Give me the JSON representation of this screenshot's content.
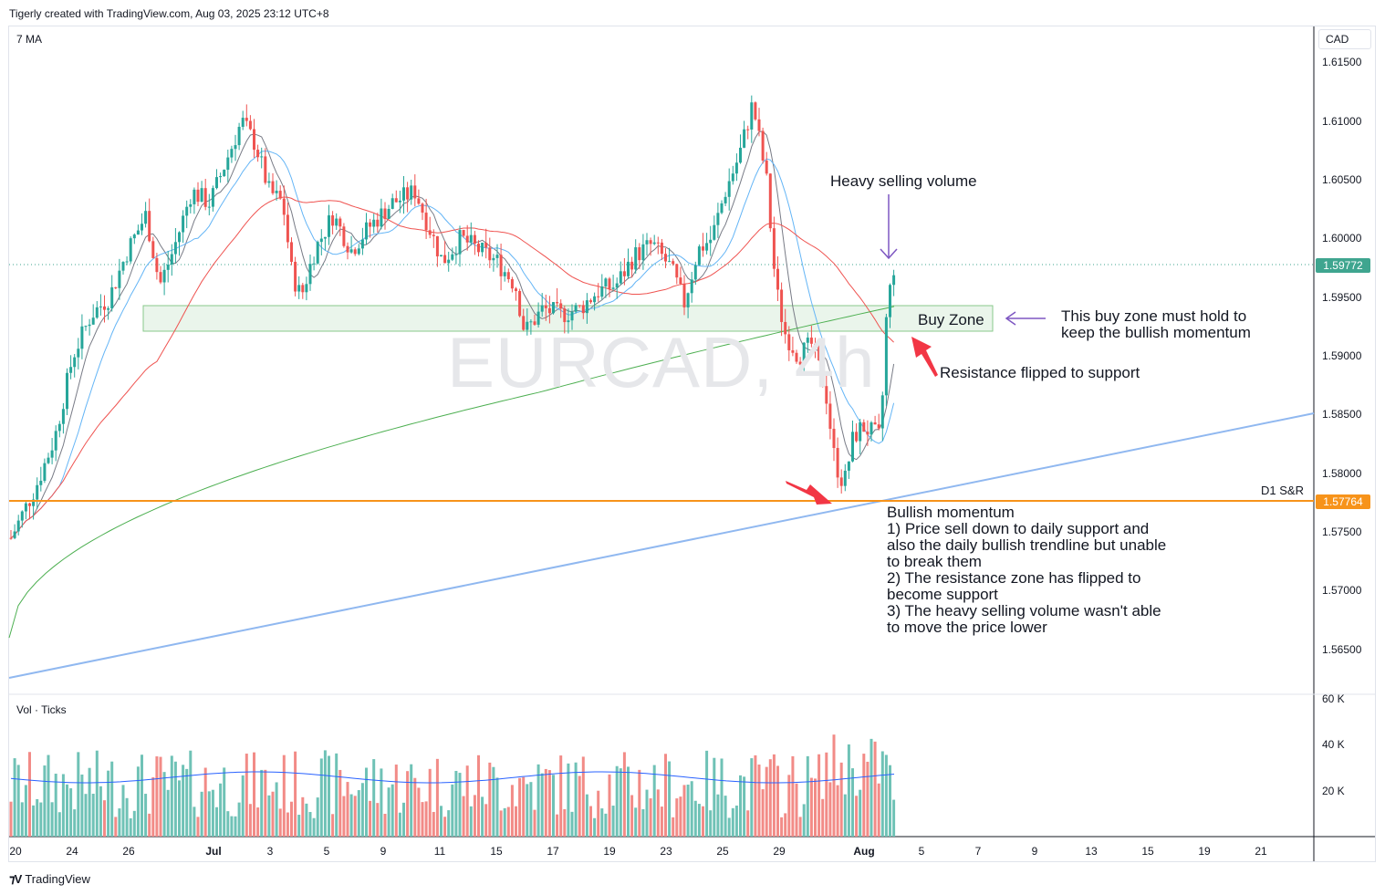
{
  "header": {
    "title": "Tigerly created with TradingView.com, Aug 03, 2025 23:12 UTC+8"
  },
  "indicator": {
    "ma_label": "7 MA",
    "volume_label": "Vol · Ticks"
  },
  "watermark": "EURCAD, 4h",
  "currency": "CAD",
  "price_axis": {
    "ticks": [
      "1.61500",
      "1.61000",
      "1.60500",
      "1.60000",
      "1.59500",
      "1.59000",
      "1.58500",
      "1.58000",
      "1.57500",
      "1.57000",
      "1.56500"
    ],
    "current_price": "1.59772",
    "sr_price": "1.57764",
    "current_color": "#3fa58f",
    "sr_color": "#f7931a"
  },
  "volume_axis": {
    "ticks": [
      "60 K",
      "40 K",
      "20 K"
    ]
  },
  "date_axis": {
    "ticks": [
      "20",
      "24",
      "26",
      "Jul",
      "3",
      "5",
      "9",
      "11",
      "15",
      "17",
      "19",
      "23",
      "25",
      "29",
      "Aug",
      "5",
      "7",
      "9",
      "13",
      "15",
      "19",
      "21"
    ]
  },
  "annotations": {
    "heavy_selling": "Heavy selling volume",
    "buy_zone": "Buy Zone",
    "buy_zone_note": "This buy zone must hold to\nkeep the bullish momentum",
    "resistance_flip": "Resistance flipped to support",
    "sr_label": "D1 S&R",
    "bullish_title": "Bullish momentum",
    "bullish_points": "1) Price sell down to daily support and\nalso the daily bullish trendline but unable\nto break them\n2) The resistance zone has flipped to\nbecome support\n3) The heavy selling volume wasn't able\nto move the price lower"
  },
  "footer": {
    "brand": "TradingView"
  },
  "colors": {
    "up": "#26a69a",
    "down": "#ef5350",
    "ma_fast": "#787b86",
    "ma_mid": "#64b5f6",
    "ma_slow": "#ef5350",
    "ma_long": "#4caf50",
    "trendline": "#90b8f0",
    "sr_line": "#f7931a",
    "zone": "#e8f5e9",
    "arrow": "#7e57c2",
    "red_arrow": "#f23645"
  },
  "chart_data": {
    "type": "candlestick",
    "symbol": "EURCAD",
    "timeframe": "4h",
    "ylim": [
      1.5625,
      1.6175
    ],
    "buy_zone": [
      1.592,
      1.5942
    ],
    "sr_level": 1.57764,
    "last_price": 1.59772,
    "volume_ylim": [
      0,
      60000
    ],
    "x_labels": [
      "20",
      "24",
      "26",
      "Jul",
      "3",
      "5",
      "9",
      "11",
      "15",
      "17",
      "19",
      "23",
      "25",
      "29",
      "Aug"
    ]
  }
}
